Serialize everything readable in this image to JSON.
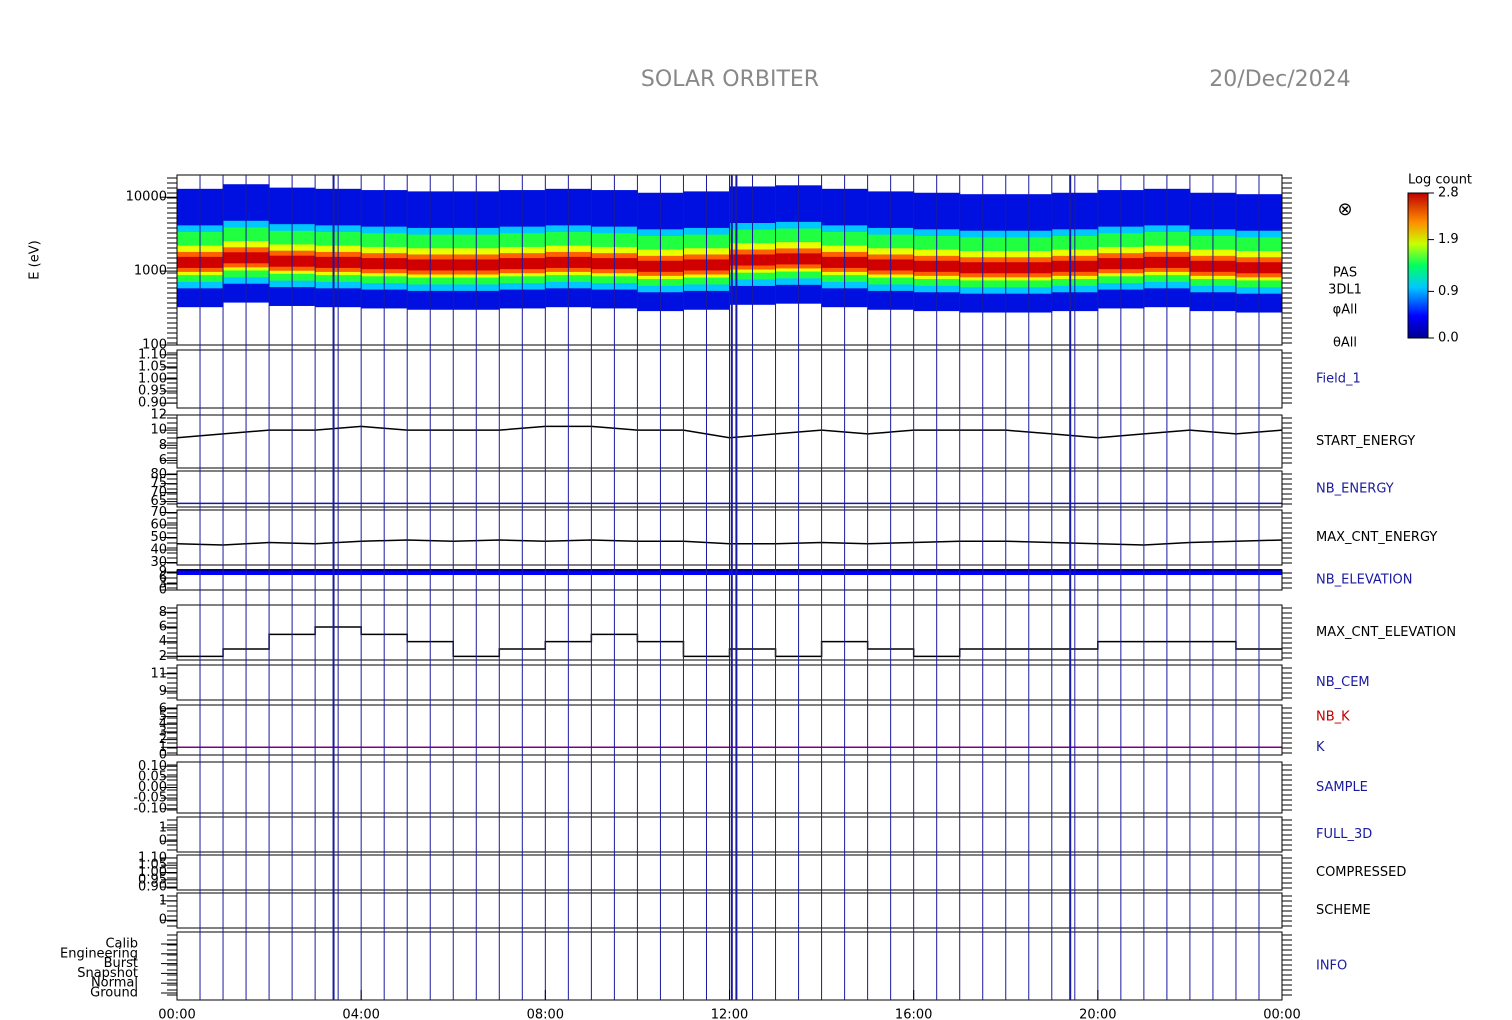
{
  "header": {
    "title": "SOLAR ORBITER",
    "date": "20/Dec/2024"
  },
  "time_axis": {
    "xlim": [
      0,
      24
    ],
    "xticks": [
      {
        "value": 0,
        "label": "00:00"
      },
      {
        "value": 4,
        "label": "04:00"
      },
      {
        "value": 8,
        "label": "08:00"
      },
      {
        "value": 12,
        "label": "12:00"
      },
      {
        "value": 16,
        "label": "16:00"
      },
      {
        "value": 20,
        "label": "20:00"
      },
      {
        "value": 24,
        "label": "00:00"
      }
    ],
    "boundaries": [
      0.5,
      1,
      1.5,
      2,
      2.5,
      3,
      3.5,
      4,
      4.5,
      5,
      5.5,
      6,
      6.5,
      7,
      7.5,
      8,
      8.5,
      9,
      9.5,
      10,
      10.5,
      11,
      11.5,
      12,
      12.5,
      13,
      13.5,
      14,
      14.5,
      15,
      15.5,
      16,
      16.5,
      17,
      17.5,
      18,
      18.5,
      19,
      19.5,
      20,
      20.5,
      21,
      21.5,
      22,
      22.5,
      23,
      23.5
    ],
    "thick_boundaries": [
      3.4,
      12.05,
      12.15,
      19.4
    ]
  },
  "chart_data": [
    {
      "type": "heatmap",
      "y_label": "E (eV)",
      "labels": [
        "PAS",
        "3DL1",
        "φAll",
        "θAll"
      ],
      "symbol": "⊗",
      "log": true,
      "ylim": [
        100,
        20000
      ],
      "yticks": [
        100,
        1000,
        10000
      ],
      "x": [
        0.5,
        1.5,
        2.5,
        3.5,
        4.5,
        5.5,
        6.5,
        7.5,
        8.5,
        9.5,
        10.5,
        11.5,
        12.5,
        13.5,
        14.5,
        15.5,
        16.5,
        17.5,
        18.5,
        19.5,
        20.5,
        21.5,
        22.5,
        23.5
      ],
      "values": [
        1300,
        1500,
        1350,
        1300,
        1250,
        1200,
        1200,
        1250,
        1300,
        1250,
        1150,
        1200,
        1400,
        1450,
        1300,
        1200,
        1150,
        1100,
        1100,
        1150,
        1250,
        1300,
        1150,
        1100
      ],
      "colorbar": {
        "title": "Log count",
        "ticks": [
          {
            "value": 0,
            "label": "0.0"
          },
          0.9,
          1.9,
          2.8
        ]
      }
    },
    {
      "type": "empty",
      "label": "Field_1",
      "label_color": "#1a1aa0",
      "ylim": [
        0.88,
        1.12
      ],
      "yticks": [
        {
          "value": 0.9,
          "label": "0.90"
        },
        0.95,
        {
          "value": 1,
          "label": "1.00"
        },
        1.05,
        {
          "value": 1.1,
          "label": "1.10"
        }
      ]
    },
    {
      "type": "line",
      "label": "START_ENERGY",
      "label_color": "#000000",
      "ylim": [
        5,
        12
      ],
      "yticks": [
        6,
        8,
        10,
        12
      ],
      "x": [
        0,
        1,
        2,
        3,
        4,
        5,
        6,
        7,
        8,
        9,
        10,
        11,
        12,
        13,
        14,
        15,
        16,
        17,
        18,
        19,
        20,
        21,
        22,
        23,
        24
      ],
      "series": [
        {
          "color": "#000000",
          "values": [
            9,
            9.5,
            10,
            10,
            10.5,
            10,
            10,
            10,
            10.5,
            10.5,
            10,
            10,
            9,
            9.5,
            10,
            9.5,
            10,
            10,
            10,
            9.5,
            9,
            9.5,
            10,
            9.5,
            10
          ]
        }
      ]
    },
    {
      "type": "line",
      "label": "NB_ENERGY",
      "label_color": "#1a1aa0",
      "ylim": [
        62,
        82
      ],
      "yticks": [
        65,
        70,
        75,
        80
      ],
      "x": [
        0,
        24
      ],
      "series": [
        {
          "color": "#1a1aa0",
          "values": [
            64,
            64
          ]
        }
      ]
    },
    {
      "type": "line",
      "label": "MAX_CNT_ENERGY",
      "label_color": "#000000",
      "ylim": [
        28,
        72
      ],
      "yticks": [
        30,
        40,
        50,
        60,
        70
      ],
      "x": [
        0,
        1,
        2,
        3,
        4,
        5,
        6,
        7,
        8,
        9,
        10,
        11,
        12,
        13,
        14,
        15,
        16,
        17,
        18,
        19,
        20,
        21,
        22,
        23,
        24
      ],
      "series": [
        {
          "color": "#000000",
          "values": [
            45,
            44,
            46,
            45,
            47,
            48,
            47,
            48,
            47,
            48,
            47,
            47,
            45,
            45,
            46,
            45,
            46,
            47,
            47,
            46,
            45,
            44,
            46,
            47,
            48
          ]
        }
      ]
    },
    {
      "type": "line",
      "label": "NB_ELEVATION",
      "label_color": "#1a1aa0",
      "ylim": [
        0,
        10
      ],
      "yticks": [
        0,
        3,
        6,
        9
      ],
      "x": [
        0,
        24
      ],
      "series": [
        {
          "color": "#0000ff",
          "width": 6,
          "values": [
            9,
            9
          ]
        }
      ]
    },
    {
      "type": "step",
      "label": "MAX_CNT_ELEVATION",
      "label_color": "#000000",
      "ylim": [
        1.5,
        9
      ],
      "yticks": [
        2,
        4,
        6,
        8
      ],
      "x": [
        0,
        1,
        2,
        3,
        4,
        5,
        6,
        7,
        8,
        9,
        10,
        11,
        12,
        13,
        14,
        15,
        16,
        17,
        18,
        19,
        20,
        21,
        22,
        23,
        24
      ],
      "series": [
        {
          "color": "#000000",
          "values": [
            2,
            3,
            5,
            6,
            5,
            4,
            2,
            3,
            4,
            5,
            4,
            2,
            3,
            2,
            4,
            3,
            2,
            3,
            3,
            3,
            4,
            4,
            4,
            3,
            3
          ]
        }
      ]
    },
    {
      "type": "empty",
      "label": "NB_CEM",
      "label_color": "#1a1aa0",
      "ylim": [
        8,
        12
      ],
      "yticks": [
        9,
        11
      ]
    },
    {
      "type": "line",
      "label": "NB_K",
      "label_color": "#c00000",
      "ylim": [
        0,
        6.5
      ],
      "yticks": [
        0,
        1,
        2,
        3,
        4,
        5,
        6
      ],
      "x": [
        0,
        24
      ],
      "series": [
        {
          "name": "K",
          "color": "#800080",
          "values": [
            1,
            1
          ]
        }
      ]
    },
    {
      "type": "empty",
      "label": "SAMPLE",
      "label_color": "#1a1aa0",
      "ylim": [
        -0.12,
        0.12
      ],
      "yticks": [
        {
          "value": -0.1,
          "label": "-0.10"
        },
        -0.05,
        {
          "value": 0,
          "label": "0.00"
        },
        0.05,
        {
          "value": 0.1,
          "label": "0.10"
        }
      ]
    },
    {
      "type": "empty",
      "label": "FULL_3D",
      "label_color": "#1a1aa0",
      "ylim": [
        -0.8,
        1.8
      ],
      "yticks": [
        0,
        1
      ]
    },
    {
      "type": "empty",
      "label": "COMPRESSED",
      "label_color": "#000000",
      "ylim": [
        0.88,
        1.12
      ],
      "yticks": [
        {
          "value": 0.9,
          "label": "0.90"
        },
        0.95,
        {
          "value": 1,
          "label": "1.00"
        },
        1.05,
        {
          "value": 1.1,
          "label": "1.10"
        }
      ]
    },
    {
      "type": "empty",
      "label": "SCHEME",
      "label_color": "#000000",
      "ylim": [
        -0.4,
        1.4
      ],
      "yticks": [
        0,
        1
      ]
    },
    {
      "type": "category",
      "label": "INFO",
      "label_color": "#1a1aa0",
      "categories": [
        "Ground",
        "Normal",
        "Snapshot",
        "Burst",
        "Engineering",
        "Calib"
      ]
    }
  ]
}
